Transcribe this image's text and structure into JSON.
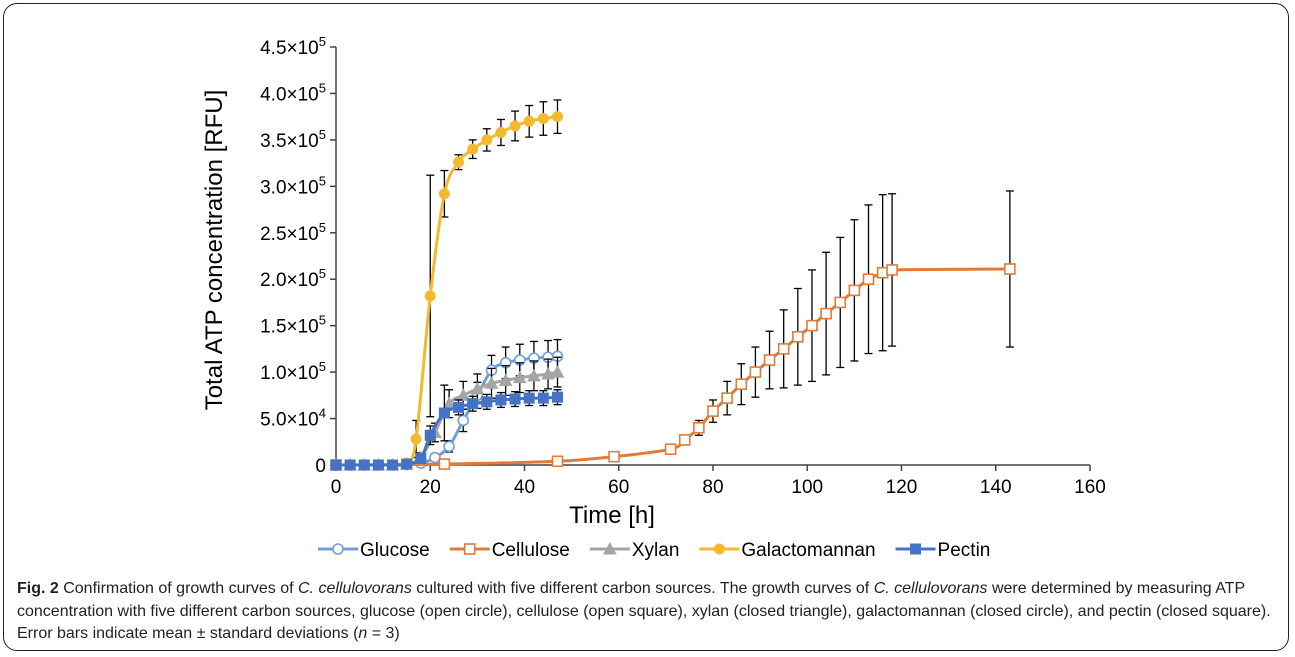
{
  "chart_data": {
    "type": "line",
    "xlabel": "Time [h]",
    "ylabel": "Total ATP concentration [RFU]",
    "xlim": [
      0,
      160
    ],
    "ylim": [
      0,
      450000
    ],
    "x_ticks": [
      0,
      20,
      40,
      60,
      80,
      100,
      120,
      140,
      160
    ],
    "y_ticks": [
      0,
      50000,
      100000,
      150000,
      200000,
      250000,
      300000,
      350000,
      400000,
      450000
    ],
    "y_tick_labels": [
      {
        "mant": "0",
        "exp": ""
      },
      {
        "mant": "5.0×10",
        "exp": "4"
      },
      {
        "mant": "1.0×10",
        "exp": "5"
      },
      {
        "mant": "1.5×10",
        "exp": "5"
      },
      {
        "mant": "2.0×10",
        "exp": "5"
      },
      {
        "mant": "2.5×10",
        "exp": "5"
      },
      {
        "mant": "3.0×10",
        "exp": "5"
      },
      {
        "mant": "3.5×10",
        "exp": "5"
      },
      {
        "mant": "4.0×10",
        "exp": "5"
      },
      {
        "mant": "4.5×10",
        "exp": "5"
      }
    ],
    "grid": false,
    "legend_position": "bottom",
    "series": [
      {
        "name": "Glucose",
        "color": "#6f9fd8",
        "marker": "open-circle",
        "x": [
          0,
          3,
          6,
          9,
          12,
          15,
          18,
          21,
          24,
          27,
          30,
          33,
          36,
          39,
          42,
          45,
          47
        ],
        "y": [
          0,
          0,
          0,
          0,
          0,
          500,
          2000,
          8000,
          20000,
          48000,
          75000,
          102000,
          110000,
          113000,
          115000,
          116000,
          117000
        ],
        "err": [
          0,
          0,
          0,
          0,
          0,
          500,
          1500,
          4000,
          6000,
          12000,
          14000,
          16000,
          17000,
          17000,
          18000,
          18000,
          18000
        ]
      },
      {
        "name": "Cellulose",
        "color": "#e07b39",
        "marker": "open-square",
        "x": [
          0,
          23,
          47,
          59,
          71,
          74,
          77,
          80,
          83,
          86,
          89,
          92,
          95,
          98,
          101,
          104,
          107,
          110,
          113,
          116,
          118,
          143
        ],
        "y": [
          0,
          1000,
          4000,
          9000,
          17000,
          27000,
          40000,
          58000,
          72000,
          87000,
          100000,
          113000,
          125000,
          138000,
          150000,
          163000,
          175000,
          188000,
          200000,
          207000,
          210000,
          211000
        ],
        "err": [
          0,
          500,
          1000,
          2000,
          3000,
          5000,
          8000,
          12000,
          18000,
          22000,
          27000,
          31000,
          42000,
          52000,
          60000,
          66000,
          70000,
          76000,
          80000,
          84000,
          82000,
          84000
        ]
      },
      {
        "name": "Xylan",
        "color": "#a5a5a5",
        "marker": "closed-triangle",
        "x": [
          0,
          3,
          6,
          9,
          12,
          15,
          18,
          21,
          24,
          27,
          30,
          33,
          36,
          39,
          42,
          45,
          47
        ],
        "y": [
          0,
          0,
          0,
          0,
          0,
          1000,
          8000,
          35000,
          66000,
          75000,
          82000,
          88000,
          91000,
          94000,
          96000,
          98000,
          100000
        ],
        "err": [
          0,
          0,
          0,
          0,
          0,
          1000,
          5000,
          10000,
          15000,
          15000,
          16000,
          16000,
          16000,
          16000,
          16000,
          16000,
          16000
        ]
      },
      {
        "name": "Galactomannan",
        "color": "#f4b92e",
        "marker": "closed-circle",
        "x": [
          0,
          3,
          6,
          9,
          12,
          15,
          17,
          20,
          23,
          26,
          29,
          32,
          35,
          38,
          41,
          44,
          47
        ],
        "y": [
          0,
          0,
          0,
          0,
          0,
          2000,
          28000,
          182000,
          292000,
          326000,
          340000,
          350000,
          358000,
          365000,
          370000,
          373000,
          375000
        ],
        "err": [
          0,
          0,
          0,
          0,
          0,
          2000,
          20000,
          130000,
          25000,
          8000,
          10000,
          12000,
          14000,
          16000,
          17000,
          18000,
          18000
        ]
      },
      {
        "name": "Pectin",
        "color": "#4472c4",
        "marker": "closed-square",
        "x": [
          0,
          3,
          6,
          9,
          12,
          15,
          18,
          20,
          23,
          26,
          29,
          32,
          35,
          38,
          41,
          44,
          47
        ],
        "y": [
          0,
          0,
          0,
          0,
          0,
          1000,
          7000,
          32000,
          56000,
          62000,
          66000,
          68000,
          70000,
          71000,
          72000,
          72000,
          73000
        ],
        "err": [
          0,
          0,
          0,
          0,
          0,
          1000,
          4000,
          10000,
          30000,
          8000,
          8000,
          8000,
          8000,
          8000,
          8000,
          8000,
          8000
        ]
      }
    ]
  },
  "caption": {
    "label": "Fig. 2",
    "p1": " Confirmation of growth curves of ",
    "org1": "C. cellulovorans",
    "p2": " cultured with five different carbon sources. The growth curves of ",
    "org2": "C. cellulovorans",
    "p3": " were determined by measuring ATP concentration with five different carbon sources, glucose (open circle), cellulose (open square), xylan (closed triangle), galactomannan (closed circle), and pectin (closed square). Error bars indicate mean ± standard deviations (",
    "n": "n",
    "p4": " = 3)"
  }
}
